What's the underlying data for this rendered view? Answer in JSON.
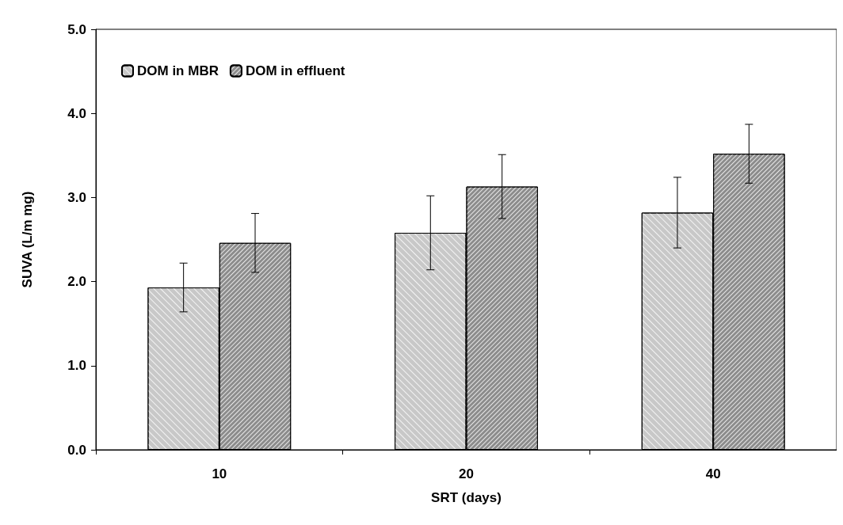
{
  "chart_data": {
    "type": "bar",
    "xlabel": "SRT (days)",
    "ylabel": "SUVA (L/m mg)",
    "categories": [
      "10",
      "20",
      "40"
    ],
    "series": [
      {
        "name": "DOM in MBR",
        "color": "#c8c8c8",
        "values": [
          1.93,
          2.58,
          2.82
        ],
        "errors": [
          0.29,
          0.44,
          0.42
        ]
      },
      {
        "name": "DOM in effluent",
        "color": "#8c8c8c",
        "values": [
          2.46,
          3.13,
          3.52
        ],
        "errors": [
          0.35,
          0.38,
          0.35
        ]
      }
    ],
    "ylim": [
      0,
      5
    ],
    "yticks": [
      {
        "value": 0,
        "label": "0.0"
      },
      {
        "value": 1,
        "label": "1.0"
      },
      {
        "value": 2,
        "label": "2.0"
      },
      {
        "value": 3,
        "label": "3.0"
      },
      {
        "value": 4,
        "label": "4.0"
      },
      {
        "value": 5,
        "label": "5.0"
      }
    ],
    "grid": false,
    "legend": "top left"
  }
}
